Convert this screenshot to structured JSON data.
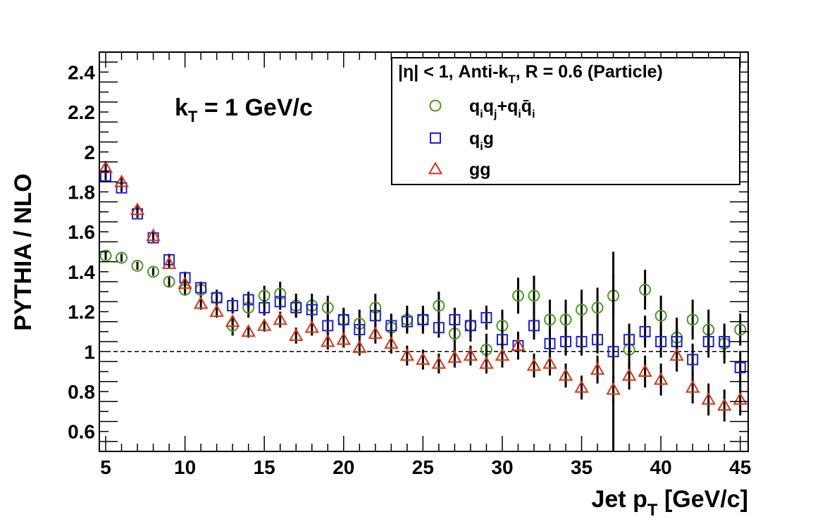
{
  "chart_data": {
    "type": "scatter",
    "xlabel": "Jet p",
    "xlabel_sub": "T",
    "xlabel_unit": " [GeV/c]",
    "ylabel": "PYTHIA / NLO",
    "xlim": [
      4.6,
      45.5
    ],
    "ylim": [
      0.5,
      2.5
    ],
    "x_ticks": [
      5,
      10,
      15,
      20,
      25,
      30,
      35,
      40,
      45
    ],
    "y_ticks": [
      0.6,
      0.8,
      1,
      1.2,
      1.4,
      1.6,
      1.8,
      2,
      2.2,
      2.4
    ],
    "reference_line": 1,
    "annotation": {
      "main": "k",
      "sub": "T",
      "rest": " = 1 GeV/c"
    },
    "legend": {
      "header": "|η| < 1, Anti-k",
      "header_sub": "T",
      "header_rest": ", R = 0.6 (Particle)",
      "position": "top-right",
      "entries": [
        {
          "label": "qiqj+qiq̄i",
          "marker": "circle",
          "color": "#4c9a1a"
        },
        {
          "label": "qig",
          "marker": "square",
          "color": "#1f1fdd"
        },
        {
          "label": "gg",
          "marker": "triangle",
          "color": "#dd3311"
        }
      ]
    },
    "x": [
      5,
      6,
      7,
      8,
      9,
      10,
      11,
      12,
      13,
      14,
      15,
      16,
      17,
      18,
      19,
      20,
      21,
      22,
      23,
      24,
      25,
      26,
      27,
      28,
      29,
      30,
      31,
      32,
      33,
      34,
      35,
      36,
      37,
      38,
      39,
      40,
      41,
      42,
      43,
      44,
      45
    ],
    "series": [
      {
        "marker": "circle",
        "color": "#4c9a1a",
        "values": [
          1.48,
          1.47,
          1.43,
          1.4,
          1.35,
          1.31,
          1.31,
          1.27,
          1.13,
          1.22,
          1.28,
          1.29,
          1.23,
          1.23,
          1.22,
          1.16,
          1.14,
          1.22,
          1.12,
          1.16,
          1.16,
          1.23,
          1.09,
          1.13,
          1.01,
          1.13,
          1.28,
          1.28,
          1.16,
          1.16,
          1.21,
          1.22,
          1.28,
          1.01,
          1.31,
          1.18,
          1.07,
          1.16,
          1.11,
          1.04,
          1.11
        ],
        "errors": [
          0.02,
          0.02,
          0.02,
          0.02,
          0.03,
          0.03,
          0.04,
          0.04,
          0.05,
          0.05,
          0.05,
          0.06,
          0.06,
          0.06,
          0.06,
          0.06,
          0.07,
          0.07,
          0.07,
          0.07,
          0.07,
          0.07,
          0.08,
          0.08,
          0.08,
          0.08,
          0.09,
          0.1,
          0.1,
          0.1,
          0.1,
          0.1,
          0.11,
          0.1,
          0.1,
          0.1,
          0.1,
          0.1,
          0.1,
          0.1,
          0.08
        ]
      },
      {
        "marker": "square",
        "color": "#1f1fdd",
        "values": [
          1.88,
          1.82,
          1.69,
          1.57,
          1.46,
          1.37,
          1.32,
          1.27,
          1.23,
          1.26,
          1.22,
          1.25,
          1.22,
          1.21,
          1.13,
          1.16,
          1.11,
          1.18,
          1.13,
          1.15,
          1.16,
          1.12,
          1.16,
          1.13,
          1.17,
          1.06,
          1.03,
          1.13,
          1.04,
          1.05,
          1.05,
          1.06,
          1.0,
          1.06,
          1.1,
          1.05,
          1.05,
          0.96,
          1.05,
          1.05,
          0.92
        ],
        "errors": [
          0.02,
          0.02,
          0.02,
          0.02,
          0.03,
          0.03,
          0.03,
          0.03,
          0.04,
          0.04,
          0.04,
          0.04,
          0.05,
          0.05,
          0.05,
          0.05,
          0.05,
          0.06,
          0.05,
          0.05,
          0.05,
          0.05,
          0.06,
          0.06,
          0.06,
          0.06,
          0.07,
          0.07,
          0.07,
          0.07,
          0.07,
          0.07,
          0.5,
          0.08,
          0.08,
          0.08,
          0.08,
          0.08,
          0.08,
          0.08,
          0.08
        ]
      },
      {
        "marker": "triangle",
        "color": "#dd3311",
        "values": [
          1.92,
          1.85,
          1.71,
          1.58,
          1.44,
          1.34,
          1.24,
          1.2,
          1.15,
          1.1,
          1.13,
          1.16,
          1.08,
          1.12,
          1.05,
          1.06,
          1.02,
          1.09,
          1.04,
          0.98,
          0.96,
          0.94,
          0.97,
          0.98,
          0.94,
          0.98,
          1.03,
          0.93,
          0.94,
          0.88,
          0.82,
          0.91,
          0.81,
          0.88,
          0.9,
          0.86,
          0.98,
          0.82,
          0.76,
          0.73,
          0.76
        ],
        "errors": [
          0.02,
          0.02,
          0.02,
          0.02,
          0.02,
          0.03,
          0.03,
          0.03,
          0.03,
          0.03,
          0.03,
          0.04,
          0.04,
          0.04,
          0.04,
          0.04,
          0.04,
          0.05,
          0.05,
          0.05,
          0.05,
          0.05,
          0.05,
          0.05,
          0.05,
          0.06,
          0.06,
          0.06,
          0.06,
          0.06,
          0.06,
          0.07,
          0.07,
          0.07,
          0.08,
          0.08,
          0.08,
          0.08,
          0.08,
          0.08,
          0.08
        ]
      }
    ]
  }
}
